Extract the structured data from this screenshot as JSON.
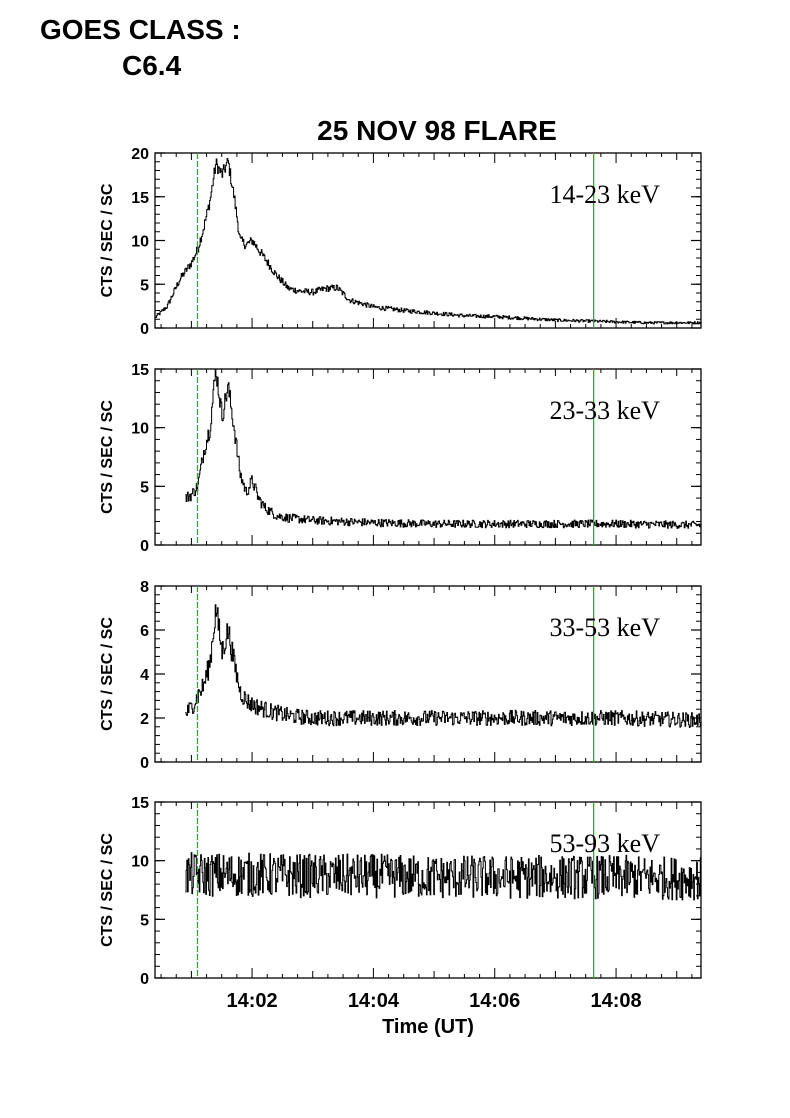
{
  "header": {
    "goes_label_line1": "GOES CLASS :",
    "goes_label_line2": "C6.4"
  },
  "chart_data": {
    "type": "line",
    "title": "25 NOV 98 FLARE",
    "xlabel": "Time (UT)",
    "x_unit": "minutes after 14:00 UT",
    "xlim": [
      0.4,
      9.4
    ],
    "xticks": [
      {
        "value": 2,
        "label": "14:02"
      },
      {
        "value": 4,
        "label": "14:04"
      },
      {
        "value": 6,
        "label": "14:06"
      },
      {
        "value": 8,
        "label": "14:08"
      }
    ],
    "vertical_lines": {
      "color": "#00c800",
      "x": [
        1.1,
        7.63
      ]
    },
    "line_color": "#000000",
    "panels": [
      {
        "band": "14-23 keV",
        "ylabel": "CTS / SEC / SC",
        "ylim": [
          0,
          20
        ],
        "yticks": [
          0,
          5,
          10,
          15,
          20
        ],
        "x": [
          0.4,
          0.6,
          0.8,
          1.0,
          1.1,
          1.2,
          1.3,
          1.4,
          1.5,
          1.6,
          1.7,
          1.8,
          1.9,
          2.0,
          2.2,
          2.4,
          2.6,
          2.8,
          3.0,
          3.2,
          3.4,
          3.6,
          4.0,
          4.5,
          5.0,
          5.5,
          6.0,
          6.5,
          7.0,
          7.5,
          8.0,
          8.5,
          9.0,
          9.4
        ],
        "y": [
          1.2,
          2.5,
          5.5,
          7.5,
          9,
          11.5,
          14.5,
          18.8,
          17.5,
          19,
          15,
          10,
          9.5,
          10,
          8,
          6,
          4.5,
          4.2,
          4.1,
          4.5,
          4.6,
          3.2,
          2.4,
          2.0,
          1.7,
          1.4,
          1.3,
          1.1,
          0.9,
          0.8,
          0.7,
          0.6,
          0.6,
          0.6
        ],
        "noise": 0.25
      },
      {
        "band": "23-33 keV",
        "ylabel": "CTS / SEC / SC",
        "ylim": [
          0,
          15
        ],
        "yticks": [
          0,
          5,
          10,
          15
        ],
        "x": [
          0.9,
          1.0,
          1.1,
          1.2,
          1.3,
          1.4,
          1.5,
          1.6,
          1.7,
          1.8,
          1.9,
          2.0,
          2.1,
          2.2,
          2.4,
          2.6,
          3.0,
          4.0,
          5.0,
          6.0,
          7.0,
          8.0,
          9.4
        ],
        "y": [
          4.0,
          4.3,
          5,
          8,
          10,
          15,
          11,
          13.5,
          10,
          6,
          4.5,
          5.5,
          4,
          3.2,
          2.5,
          2.3,
          2.1,
          1.9,
          1.8,
          1.8,
          1.8,
          1.8,
          1.7
        ],
        "noise": 0.35
      },
      {
        "band": "33-53 keV",
        "ylabel": "CTS / SEC / SC",
        "ylim": [
          0,
          8
        ],
        "yticks": [
          0,
          2,
          4,
          6,
          8
        ],
        "x": [
          0.9,
          1.0,
          1.1,
          1.2,
          1.3,
          1.4,
          1.5,
          1.6,
          1.7,
          1.8,
          1.9,
          2.0,
          2.3,
          2.6,
          3.0,
          4.0,
          5.0,
          6.0,
          7.0,
          8.0,
          9.4
        ],
        "y": [
          2.2,
          2.5,
          3.0,
          3.5,
          4.5,
          7,
          5,
          6,
          4.5,
          3.2,
          2.8,
          2.6,
          2.3,
          2.1,
          2.0,
          2.0,
          2.0,
          2.0,
          2.0,
          2.0,
          1.9
        ],
        "noise": 0.35
      },
      {
        "band": "53-93 keV",
        "ylabel": "CTS / SEC / SC",
        "ylim": [
          0,
          15
        ],
        "yticks": [
          0,
          5,
          10,
          15
        ],
        "x": [
          0.9,
          2.0,
          3.0,
          4.0,
          5.0,
          6.0,
          7.0,
          8.0,
          9.0,
          9.4
        ],
        "y": [
          8.8,
          8.8,
          8.7,
          8.7,
          8.6,
          8.6,
          8.6,
          8.6,
          8.5,
          8.5
        ],
        "noise": 0.9
      }
    ]
  }
}
